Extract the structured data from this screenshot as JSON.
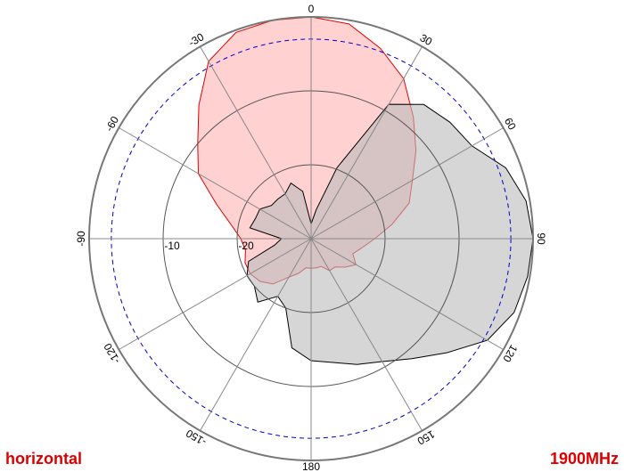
{
  "chart_data": {
    "type": "polar",
    "polarization": "horizontal",
    "frequency": "1900MHz",
    "rlim": [
      -30,
      0
    ],
    "rticks": [
      -20,
      -10
    ],
    "thetaticks": [
      0,
      30,
      60,
      90,
      120,
      150,
      180,
      -150,
      -120,
      -90,
      -60,
      -30
    ],
    "reference": -3,
    "reference_color": "#0000cc",
    "angles": [
      0,
      10,
      20,
      30,
      40,
      50,
      60,
      70,
      80,
      90,
      100,
      110,
      120,
      130,
      140,
      150,
      160,
      170,
      180,
      190,
      200,
      210,
      220,
      230,
      240,
      250,
      260,
      270,
      280,
      290,
      300,
      310,
      320,
      330,
      340,
      350
    ],
    "series": [
      {
        "color": "#dd0000",
        "fill": "#ffcccc",
        "values": [
          0,
          -0.5,
          -2.6,
          -5,
          -8.5,
          -11.5,
          -14.2,
          -15.9,
          -18.9,
          -21.4,
          -23,
          -24,
          -23,
          -24,
          -25,
          -25,
          -26,
          -26,
          -26,
          -26,
          -25,
          -24,
          -22,
          -21,
          -20.5,
          -20.5,
          -21,
          -20.5,
          -19,
          -16.4,
          -12.4,
          -10,
          -6.4,
          -2.3,
          -0.3,
          0
        ]
      },
      {
        "color": "#000000",
        "fill": "#bbbbbb",
        "values": [
          -28,
          -26,
          -19.8,
          -9,
          -6.3,
          -5.5,
          -4.9,
          -2,
          -0.5,
          0,
          -0.3,
          -0.8,
          -2.5,
          -6,
          -8.8,
          -10.8,
          -11.9,
          -13,
          -13.5,
          -15,
          -20,
          -21,
          -18.8,
          -20,
          -20,
          -21,
          -25,
          -26,
          -21.6,
          -22,
          -22,
          -23,
          -23,
          -23,
          -22,
          -23.5
        ]
      }
    ]
  }
}
